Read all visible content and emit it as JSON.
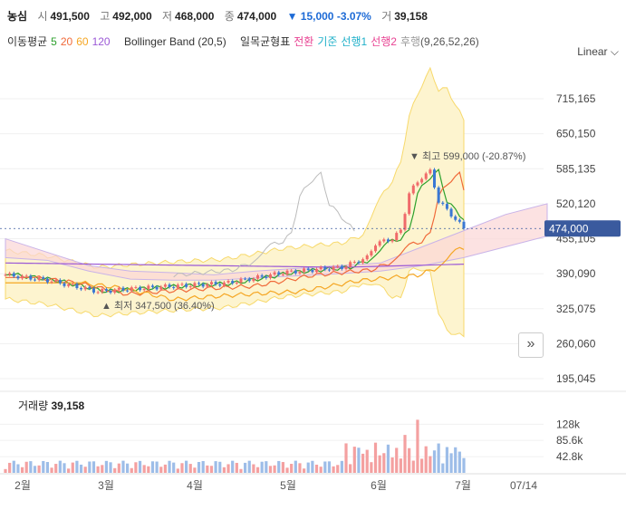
{
  "header": {
    "name": "농심",
    "open_label": "시",
    "open": "491,500",
    "high_label": "고",
    "high": "492,000",
    "low_label": "저",
    "low": "468,000",
    "close_label": "종",
    "close": "474,000",
    "change": "▼ 15,000",
    "change_pct": "-3.07%",
    "vol_label": "거",
    "vol": "39,158"
  },
  "indicators": {
    "ma_label": "이동평균",
    "ma5": "5",
    "ma20": "20",
    "ma60": "60",
    "ma120": "120",
    "bb": "Bollinger Band (20,5)",
    "ichimoku": "일목균형표",
    "conv": "전환",
    "base": "기준",
    "span1": "선행1",
    "span2": "선행2",
    "lag": "후행",
    "ichi_params": "(9,26,52,26)"
  },
  "scale_label": "Linear",
  "colors": {
    "up": "#f06a6a",
    "down": "#3a78d4",
    "ma5": "#2ca02c",
    "ma20": "#f06a3a",
    "ma60": "#f5a623",
    "ma120": "#9b59d6",
    "bb": "#f7d96b",
    "price_tag": "#3a5a9e"
  },
  "chart_data": {
    "type": "line",
    "y_ticks": [
      "715,165",
      "650,150",
      "585,135",
      "520,120",
      "455,105",
      "390,090",
      "325,075",
      "260,060",
      "195,045"
    ],
    "y_values": [
      715165,
      650150,
      585135,
      520120,
      455105,
      390090,
      325075,
      260060,
      195045
    ],
    "x_ticks": [
      "2월",
      "3월",
      "4월",
      "5월",
      "6월",
      "7월",
      "07/14"
    ],
    "current_price": 474000,
    "current_label": "474,000",
    "high_marker": {
      "label": "최고",
      "value": "599,000",
      "pct": "(-20.87%)"
    },
    "low_marker": {
      "label": "최저",
      "value": "347,500",
      "pct": "(36.40%)"
    },
    "volume": {
      "title": "거래량",
      "value": "39,158",
      "ticks": [
        "128k",
        "85.6k",
        "42.8k"
      ],
      "tick_values": [
        128000,
        85600,
        42800
      ]
    }
  }
}
